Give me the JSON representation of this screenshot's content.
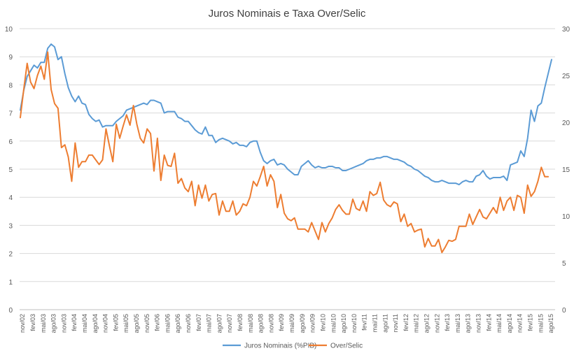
{
  "chart_data": {
    "type": "line",
    "title": "Juros Nominais e Taxa Over/Selic",
    "xlabel": "",
    "ylabel_left": "",
    "ylabel_right": "",
    "ylim_left": [
      0,
      10
    ],
    "ylim_right": [
      0,
      30
    ],
    "yticks_left": [
      "0",
      "1",
      "2",
      "3",
      "4",
      "5",
      "6",
      "7",
      "8",
      "9",
      "10"
    ],
    "yticks_right": [
      "0",
      "5",
      "10",
      "15",
      "20",
      "25",
      "30"
    ],
    "grid": "horizontal",
    "legend_position": "bottom",
    "x_labels": [
      "nov/02",
      "fev/03",
      "mai/03",
      "ago/03",
      "nov/03",
      "fev/04",
      "mai/04",
      "ago/04",
      "nov/04",
      "fev/05",
      "mai/05",
      "ago/05",
      "nov/05",
      "fev/06",
      "mai/06",
      "ago/06",
      "nov/06",
      "fev/07",
      "mai/07",
      "ago/07",
      "nov/07",
      "fev/08",
      "mai/08",
      "ago/08",
      "nov/08",
      "fev/09",
      "mai/09",
      "ago/09",
      "nov/09",
      "fev/10",
      "mai/10",
      "ago/10",
      "nov/10",
      "fev/11",
      "mai/11",
      "ago/11",
      "nov/11",
      "fev/12",
      "mai/12",
      "ago/12",
      "nov/12",
      "fev/13",
      "mai/13",
      "ago/13",
      "nov/13",
      "fev/14",
      "mai/14",
      "ago/14",
      "nov/14",
      "fev/15",
      "mai/15",
      "ago/15"
    ],
    "series": [
      {
        "name": "Juros Nominais (%PIB)",
        "color": "#5b9bd5",
        "axis": "left",
        "values": [
          7.1,
          7.8,
          8.3,
          8.5,
          8.7,
          8.6,
          8.8,
          8.8,
          9.3,
          9.45,
          9.35,
          8.9,
          9.0,
          8.4,
          7.9,
          7.6,
          7.4,
          7.6,
          7.35,
          7.3,
          6.95,
          6.8,
          6.7,
          6.75,
          6.5,
          6.55,
          6.55,
          6.55,
          6.7,
          6.8,
          6.9,
          7.1,
          7.15,
          7.2,
          7.25,
          7.3,
          7.35,
          7.3,
          7.45,
          7.45,
          7.4,
          7.35,
          7.0,
          7.05,
          7.05,
          7.05,
          6.85,
          6.8,
          6.7,
          6.7,
          6.55,
          6.4,
          6.3,
          6.25,
          6.5,
          6.2,
          6.2,
          5.95,
          6.05,
          6.1,
          6.05,
          6.0,
          5.9,
          5.95,
          5.85,
          5.85,
          5.8,
          5.95,
          6.0,
          6.0,
          5.6,
          5.3,
          5.2,
          5.3,
          5.35,
          5.15,
          5.2,
          5.15,
          5.0,
          4.9,
          4.8,
          4.8,
          5.1,
          5.2,
          5.3,
          5.15,
          5.05,
          5.1,
          5.05,
          5.05,
          5.1,
          5.1,
          5.05,
          5.05,
          4.95,
          4.95,
          5.0,
          5.05,
          5.1,
          5.15,
          5.2,
          5.3,
          5.35,
          5.35,
          5.4,
          5.4,
          5.45,
          5.45,
          5.4,
          5.35,
          5.35,
          5.3,
          5.25,
          5.15,
          5.1,
          5.0,
          4.95,
          4.85,
          4.75,
          4.7,
          4.6,
          4.55,
          4.55,
          4.6,
          4.55,
          4.5,
          4.5,
          4.5,
          4.45,
          4.55,
          4.6,
          4.55,
          4.55,
          4.75,
          4.8,
          4.95,
          4.75,
          4.65,
          4.7,
          4.7,
          4.7,
          4.75,
          4.6,
          5.15,
          5.2,
          5.25,
          5.65,
          5.45,
          6.1,
          7.1,
          6.7,
          7.25,
          7.35,
          7.9,
          8.4,
          8.9
        ]
      },
      {
        "name": "Over/Selic",
        "color": "#ed7d31",
        "axis": "right",
        "values": [
          20.5,
          23.5,
          26.3,
          24.3,
          23.6,
          25.0,
          26.0,
          24.6,
          27.5,
          23.5,
          22.0,
          21.5,
          17.3,
          17.6,
          16.3,
          13.7,
          17.8,
          15.2,
          15.8,
          15.8,
          16.5,
          16.5,
          16.0,
          15.5,
          16.0,
          19.3,
          17.5,
          15.8,
          19.8,
          18.3,
          19.6,
          20.8,
          19.7,
          21.8,
          19.8,
          18.3,
          17.8,
          19.3,
          18.8,
          14.8,
          18.3,
          13.8,
          16.5,
          15.4,
          15.3,
          16.7,
          13.5,
          14.0,
          13.0,
          12.6,
          13.7,
          11.1,
          13.3,
          11.9,
          13.3,
          11.6,
          12.3,
          12.4,
          10.1,
          11.6,
          10.5,
          10.5,
          11.6,
          10.1,
          10.5,
          11.3,
          11.1,
          12.0,
          13.7,
          13.2,
          14.2,
          15.3,
          13.2,
          14.4,
          13.7,
          10.9,
          12.3,
          10.3,
          9.7,
          9.5,
          9.8,
          8.6,
          8.6,
          8.6,
          8.3,
          9.3,
          8.4,
          7.5,
          9.3,
          8.3,
          9.2,
          9.8,
          10.7,
          11.2,
          10.6,
          10.2,
          10.2,
          11.8,
          10.8,
          10.6,
          11.6,
          10.5,
          12.6,
          12.2,
          12.4,
          13.6,
          11.7,
          11.2,
          11.0,
          11.5,
          11.3,
          9.4,
          10.2,
          8.9,
          9.2,
          8.3,
          8.5,
          8.6,
          6.7,
          7.6,
          6.8,
          6.8,
          7.5,
          6.1,
          6.7,
          7.4,
          7.3,
          7.5,
          8.9,
          8.9,
          8.9,
          10.2,
          9.1,
          9.9,
          10.7,
          9.9,
          9.7,
          10.3,
          10.9,
          10.3,
          12.0,
          10.6,
          11.6,
          12.0,
          10.6,
          12.2,
          12.0,
          10.3,
          13.3,
          12.1,
          12.6,
          13.7,
          15.2,
          14.2,
          14.2
        ]
      }
    ]
  }
}
